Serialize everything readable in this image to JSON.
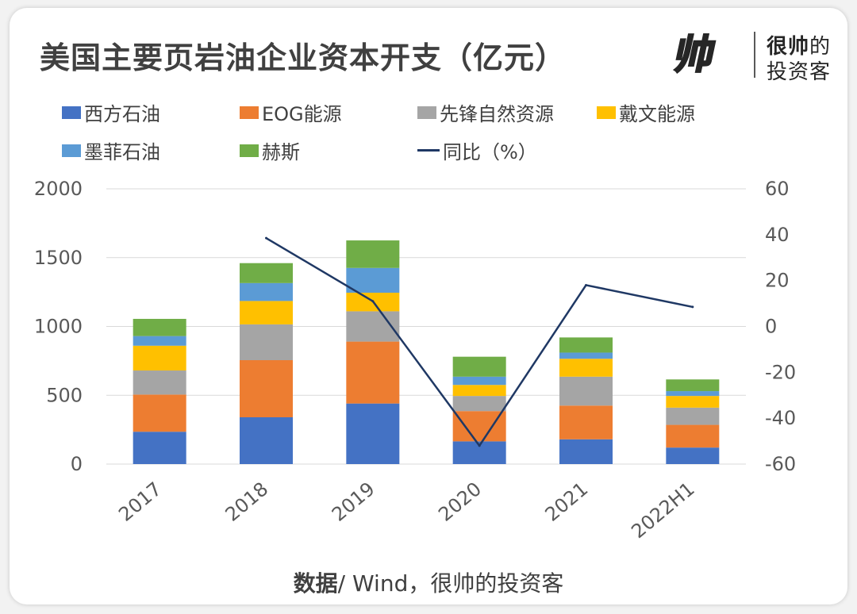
{
  "header": {
    "title": "美国主要页岩油企业资本开支（亿元）",
    "brand_line1_bold": "很帅",
    "brand_line1_rest": "的",
    "brand_line2": "投资客",
    "logo_text": "帅"
  },
  "source": {
    "bold": "数据",
    "rest": "/ Wind，很帅的投资客"
  },
  "colors": {
    "western": "#4472c4",
    "eog": "#ed7d31",
    "pioneer": "#a5a5a5",
    "devon": "#ffc000",
    "marathon": "#5b9bd5",
    "hess": "#70ad47",
    "yoy": "#1f3864",
    "logo_yellow": "#ffe000"
  },
  "chart_data": {
    "type": "bar",
    "stacked": true,
    "title": "美国主要页岩油企业资本开支（亿元）",
    "categories": [
      "2017",
      "2018",
      "2019",
      "2020",
      "2021",
      "2022H1"
    ],
    "series": [
      {
        "name": "西方石油",
        "values": [
          235,
          340,
          440,
          165,
          180,
          120
        ]
      },
      {
        "name": "EOG能源",
        "values": [
          270,
          415,
          450,
          220,
          245,
          165
        ]
      },
      {
        "name": "先锋自然资源",
        "values": [
          175,
          260,
          220,
          110,
          210,
          125
        ]
      },
      {
        "name": "戴文能源",
        "values": [
          180,
          170,
          135,
          80,
          130,
          85
        ]
      },
      {
        "name": "墨菲石油",
        "values": [
          70,
          130,
          180,
          60,
          45,
          35
        ]
      },
      {
        "name": "赫斯",
        "values": [
          125,
          145,
          200,
          145,
          110,
          85
        ]
      }
    ],
    "line_series": {
      "name": "同比（%）",
      "axis": "right",
      "values": [
        null,
        38.5,
        11,
        -52,
        18,
        8.5
      ]
    },
    "y_left": {
      "min": 0,
      "max": 2000,
      "ticks": [
        "0",
        "500",
        "1000",
        "1500",
        "2000"
      ]
    },
    "y_right": {
      "min": -60,
      "max": 60,
      "ticks": [
        "-60",
        "-40",
        "-20",
        "0",
        "20",
        "40",
        "60"
      ]
    },
    "grid": true,
    "legend_position": "top"
  }
}
